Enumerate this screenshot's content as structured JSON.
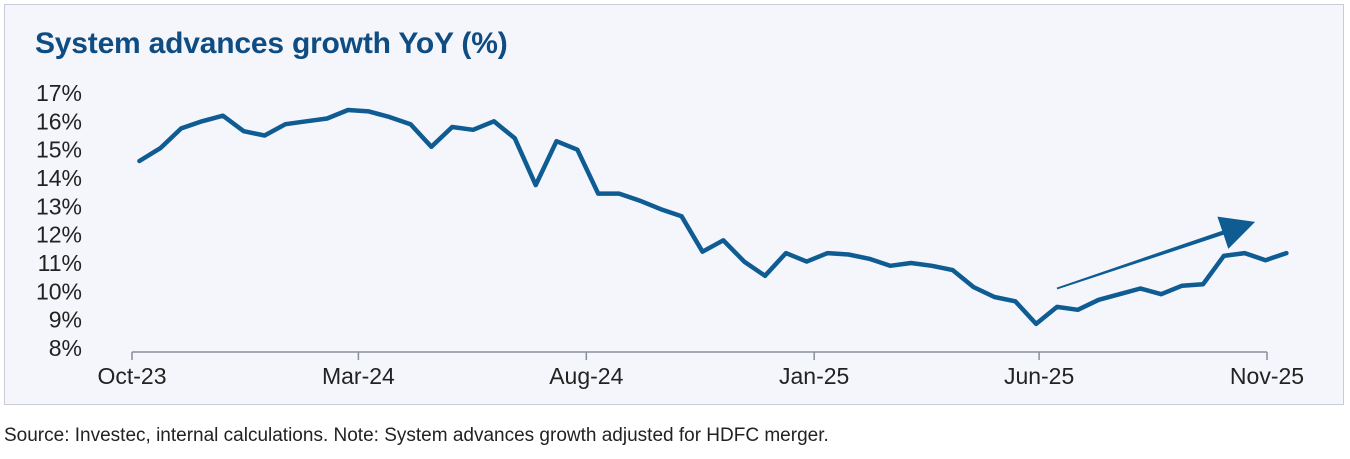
{
  "title": "System advances growth YoY (%)",
  "footnote": "Source: Investec, internal calculations. Note: System advances growth adjusted for HDFC merger.",
  "colors": {
    "line": "#0f5c93",
    "title": "#0f4c81",
    "axis": "#8a8f9c",
    "background": "#f5f6fc"
  },
  "chart_data": {
    "type": "line",
    "title": "System advances growth YoY (%)",
    "xlabel": "",
    "ylabel": "",
    "ylim": [
      8,
      17
    ],
    "yticks": [
      "17%",
      "16%",
      "15%",
      "14%",
      "13%",
      "12%",
      "11%",
      "10%",
      "9%",
      "8%"
    ],
    "xticks": [
      "Oct-23",
      "Mar-24",
      "Aug-24",
      "Jan-25",
      "Jun-25",
      "Nov-25"
    ],
    "x": [
      "2023-10-06",
      "2023-10-20",
      "2023-11-03",
      "2023-11-17",
      "2023-12-01",
      "2023-12-15",
      "2023-12-29",
      "2024-01-12",
      "2024-01-26",
      "2024-02-09",
      "2024-02-23",
      "2024-03-08",
      "2024-03-22",
      "2024-04-05",
      "2024-04-19",
      "2024-05-03",
      "2024-05-17",
      "2024-05-31",
      "2024-06-14",
      "2024-06-28",
      "2024-07-12",
      "2024-07-26",
      "2024-08-09",
      "2024-08-23",
      "2024-09-06",
      "2024-09-20",
      "2024-10-04",
      "2024-10-18",
      "2024-11-01",
      "2024-11-15",
      "2024-11-29",
      "2024-12-13",
      "2024-12-27",
      "2025-01-10",
      "2025-01-24",
      "2025-02-07",
      "2025-02-21",
      "2025-03-07",
      "2025-03-21",
      "2025-04-04",
      "2025-04-18",
      "2025-05-02",
      "2025-05-16",
      "2025-05-30",
      "2025-06-13",
      "2025-06-27",
      "2025-07-11",
      "2025-07-25",
      "2025-08-08",
      "2025-08-22",
      "2025-09-05",
      "2025-09-19",
      "2025-10-03",
      "2025-10-17",
      "2025-10-31",
      "2025-11-14"
    ],
    "series": [
      {
        "values": [
          14.6,
          15.05,
          15.75,
          16.0,
          16.2,
          15.65,
          15.5,
          15.9,
          16.0,
          16.1,
          16.4,
          16.35,
          16.15,
          15.9,
          15.1,
          15.8,
          15.7,
          16.0,
          15.4,
          13.75,
          15.3,
          15.0,
          13.45,
          13.45,
          13.2,
          12.9,
          12.65,
          11.4,
          11.8,
          11.05,
          10.55,
          11.35,
          11.05,
          11.35,
          11.3,
          11.15,
          10.9,
          11.0,
          10.9,
          10.75,
          10.15,
          9.8,
          9.65,
          8.85,
          9.45,
          9.35,
          9.7,
          9.9,
          10.1,
          9.9,
          10.2,
          10.25,
          11.25,
          11.35,
          11.1,
          11.35
        ]
      }
    ],
    "grid": false,
    "legend": "none",
    "annotations": [
      {
        "type": "arrow",
        "from": [
          "2025-06-13",
          10.1
        ],
        "to": [
          "2025-10-24",
          12.45
        ]
      }
    ]
  }
}
